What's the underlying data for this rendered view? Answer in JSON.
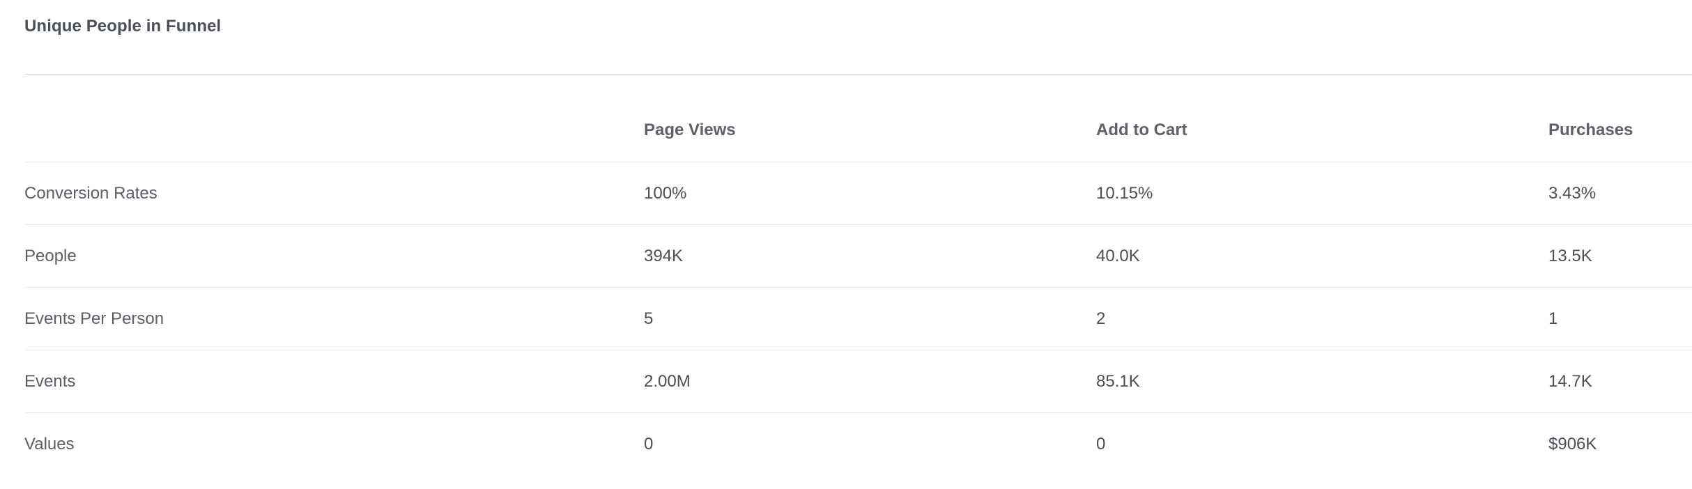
{
  "panel": {
    "title": "Unique People in Funnel"
  },
  "table": {
    "columns": [
      "",
      "Page Views",
      "Add to Cart",
      "Purchases"
    ],
    "rows": [
      {
        "label": "Conversion Rates",
        "values": [
          "100%",
          "10.15%",
          "3.43%"
        ]
      },
      {
        "label": "People",
        "values": [
          "394K",
          "40.0K",
          "13.5K"
        ]
      },
      {
        "label": "Events Per Person",
        "values": [
          "5",
          "2",
          "1"
        ]
      },
      {
        "label": "Events",
        "values": [
          "2.00M",
          "85.1K",
          "14.7K"
        ]
      },
      {
        "label": "Values",
        "values": [
          "0",
          "0",
          "$906K"
        ]
      }
    ]
  },
  "colors": {
    "text": "#4b4f56",
    "divider": "#cfd2d6",
    "row_divider": "#e4e6e9",
    "background": "#ffffff"
  }
}
